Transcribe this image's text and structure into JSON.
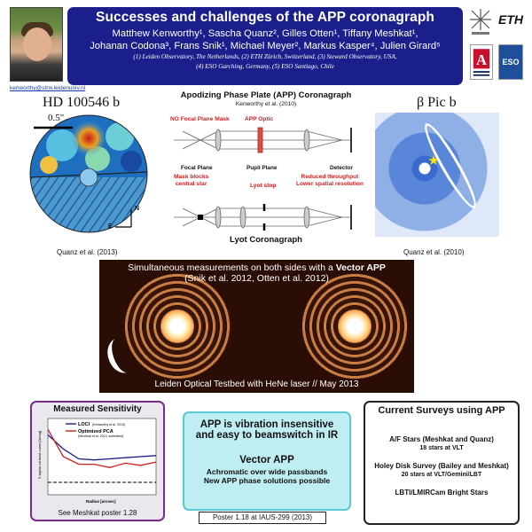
{
  "header": {
    "title": "Successes and challenges of the APP coronagraph",
    "authors_line1": "Matthew Kenworthy¹, Sascha Quanz², Gilles Otten¹, Tiffany Meshkat¹,",
    "authors_line2": "Johanan Codona³, Frans Snik¹, Michael Meyer², Markus Kasper⁴, Julien Girard⁵",
    "affil_line1": "(1) Leiden Observatory, The Netherlands, (2) ETH Zürich, Switzerland, (3) Steward Observatory, USA,",
    "affil_line2": "(4) ESO Garching, Germany, (5) ESO Santiago, Chile"
  },
  "email": "kenworthy@strw.leidenuniv.nl",
  "logos": {
    "eth": "ETH",
    "ua": "A",
    "eso": "ESO"
  },
  "hd": {
    "label": "HD 100546 b",
    "scale": "0.5\"",
    "caption": "Quanz et al. (2013)",
    "n": "N",
    "e": "E"
  },
  "beta": {
    "label": "β Pic b",
    "caption": "Quanz et al. (2010)"
  },
  "diagram": {
    "title": "Apodizing Phase Plate (APP) Coronagraph",
    "subtitle": "Kenworthy et al. (2010)",
    "no_mask": "NO Focal Plane Mask",
    "app_optic": "APP Optic",
    "focal_plane": "Focal Plane",
    "pupil_plane": "Pupil Plane",
    "detector": "Detector",
    "mask_blocks": "Mask blocks\ncentral star",
    "lyot_stop": "Lyot stop",
    "reduced": "Reduced throughput\nLower spatial resolution",
    "lyot_title": "Lyot Coronagraph"
  },
  "lab": {
    "line1a": "Simultaneous measurements on both sides with a ",
    "line1b": "Vector APP",
    "line2": "(Snik et al. 2012, Otten et al. 2012)",
    "bottom": "Leiden Optical Testbed with HeNe laser // May 2013"
  },
  "sensitivity": {
    "title": "Measured Sensitivity",
    "legend1": "LOCI",
    "legend1_note": "(Kenworthy et al. 2013)",
    "legend2": "Optimized PCA",
    "legend2_note": "(Meshkat et al. 2013, submitted)",
    "ylabel": "5 sigma contrast curve [Δmag]",
    "xlabel": "Radius [arcsec]",
    "footer": "See Meshkat poster 1.28",
    "colors": {
      "loci": "#1a1a8c",
      "pca": "#d21e1e"
    }
  },
  "chart_data": {
    "type": "line",
    "series": [
      {
        "name": "LOCI",
        "x": [
          0.2,
          0.3,
          0.4,
          0.5,
          0.6,
          0.7,
          0.8,
          0.9
        ],
        "y": [
          10.5,
          11.8,
          12.7,
          12.8,
          12.7,
          12.6,
          12.5,
          12.4
        ]
      },
      {
        "name": "Optimized PCA",
        "x": [
          0.2,
          0.3,
          0.4,
          0.5,
          0.6,
          0.7,
          0.8,
          0.9
        ],
        "y": [
          10.0,
          12.5,
          13.2,
          13.2,
          13.5,
          13.1,
          13.3,
          13.0
        ]
      }
    ],
    "xlabel": "Radius [arcsec]",
    "ylabel": "5 sigma contrast curve [Δmag]"
  },
  "middle": {
    "title1": "APP is vibration insensitive",
    "title2": "and easy to beamswitch in IR",
    "vector_title": "Vector APP",
    "vec1": "Achromatic over wide passbands",
    "vec2": "New APP phase solutions possible"
  },
  "poster": "Poster 1.18 at IAUS-299 (2013)",
  "surveys": {
    "title": "Current Surveys using APP",
    "s1": "A/F Stars (Meshkat and Quanz)",
    "s1b": "18 stars at VLT",
    "s2": "Holey Disk Survey (Bailey and Meshkat)",
    "s2b": "20 stars at VLT/Gemini/LBT",
    "s3": "LBTI/LMIRCam Bright Stars"
  }
}
